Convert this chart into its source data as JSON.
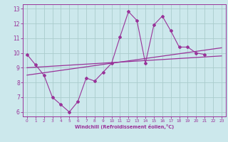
{
  "xlabel": "Windchill (Refroidissement éolien,°C)",
  "background_color": "#cce8ec",
  "line_color": "#993399",
  "grid_color": "#aacccc",
  "x_data": [
    0,
    1,
    2,
    3,
    4,
    5,
    6,
    7,
    8,
    9,
    10,
    11,
    12,
    13,
    14,
    15,
    16,
    17,
    18,
    19,
    20,
    21,
    22,
    23
  ],
  "y_line1": [
    9.9,
    9.2,
    8.5,
    7.0,
    6.5,
    6.0,
    6.7,
    8.3,
    8.1,
    8.7,
    9.3,
    11.1,
    12.8,
    12.2,
    9.3,
    11.9,
    12.5,
    11.5,
    10.4,
    10.4,
    10.0,
    9.9,
    null,
    null
  ],
  "trend1_x": [
    0,
    23
  ],
  "trend1_y": [
    9.0,
    9.8
  ],
  "trend2_x": [
    0,
    23
  ],
  "trend2_y": [
    8.5,
    10.35
  ],
  "ylim": [
    5.7,
    13.3
  ],
  "xlim": [
    -0.5,
    23.5
  ],
  "yticks": [
    6,
    7,
    8,
    9,
    10,
    11,
    12,
    13
  ],
  "xticks": [
    0,
    1,
    2,
    3,
    4,
    5,
    6,
    7,
    8,
    9,
    10,
    11,
    12,
    13,
    14,
    15,
    16,
    17,
    18,
    19,
    20,
    21,
    22,
    23
  ]
}
